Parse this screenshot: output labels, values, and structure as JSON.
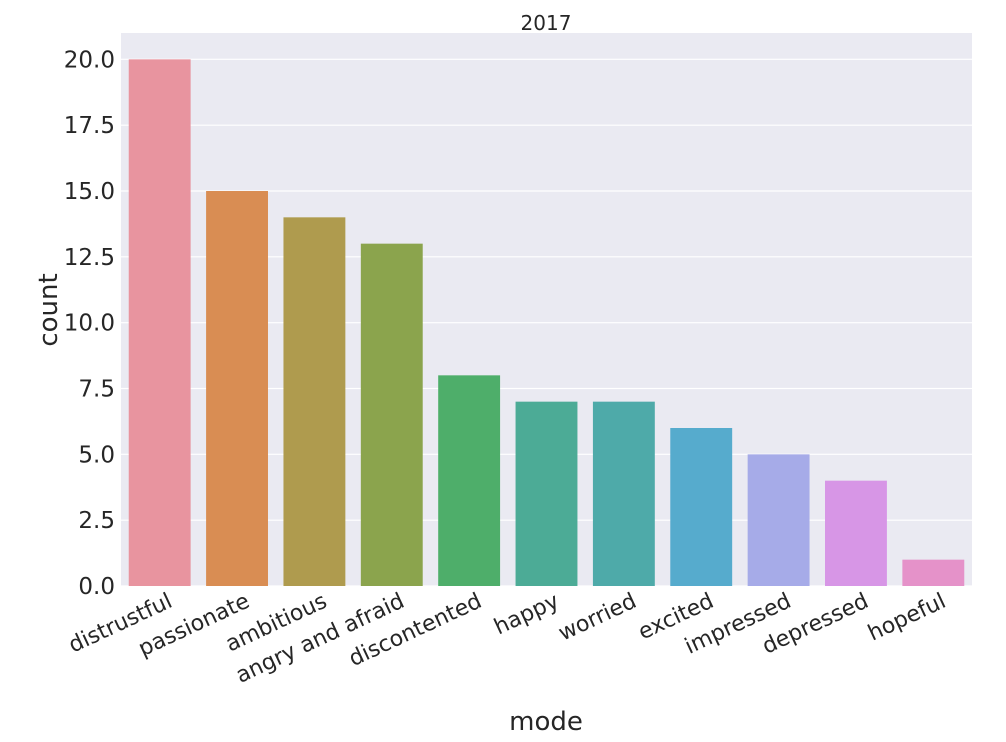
{
  "chart_data": {
    "type": "bar",
    "title": "2017",
    "xlabel": "mode",
    "ylabel": "count",
    "categories": [
      "distrustful",
      "passionate",
      "ambitious",
      "angry and afraid",
      "discontented",
      "happy",
      "worried",
      "excited",
      "impressed",
      "depressed",
      "hopeful"
    ],
    "values": [
      20,
      15,
      14,
      13,
      8,
      7,
      7,
      6,
      5,
      4,
      1
    ],
    "ylim": [
      0,
      21
    ],
    "yticks": [
      "0.0",
      "2.5",
      "5.0",
      "7.5",
      "10.0",
      "12.5",
      "15.0",
      "17.5",
      "20.0"
    ],
    "grid": true,
    "colors": [
      "#e8949f",
      "#d98d53",
      "#af9b4e",
      "#8ba44d",
      "#4eae6a",
      "#4cab96",
      "#4eaaa9",
      "#56abcd",
      "#a6abe8",
      "#d796e6",
      "#e592c9"
    ]
  }
}
